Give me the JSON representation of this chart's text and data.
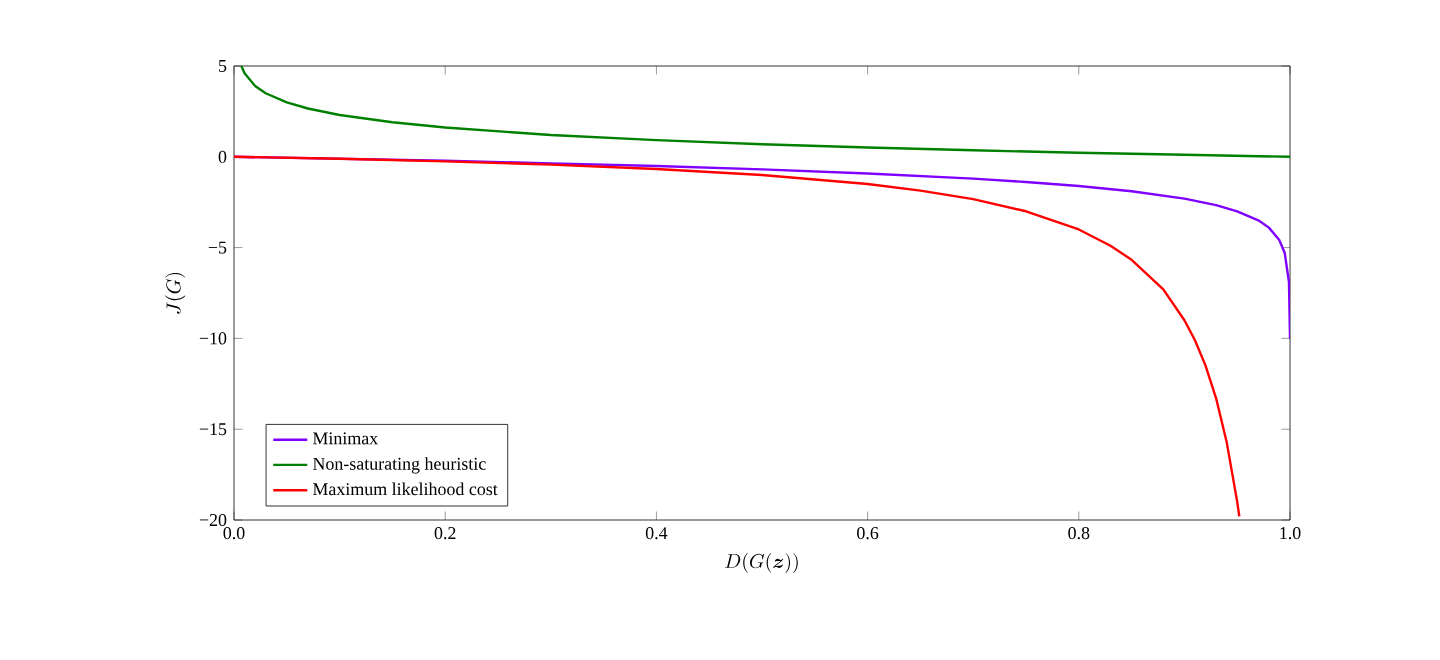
{
  "chart_data": {
    "type": "line",
    "xlabel": "D(G(\\boldsymbol{z}))",
    "ylabel": "J(G)",
    "xlim": [
      0,
      1
    ],
    "ylim": [
      -20,
      5
    ],
    "xticks": [
      {
        "value": 0,
        "label": "0.0"
      },
      {
        "value": 0.2,
        "label": "0.2"
      },
      {
        "value": 0.4,
        "label": "0.4"
      },
      {
        "value": 0.6,
        "label": "0.6"
      },
      {
        "value": 0.8,
        "label": "0.8"
      },
      {
        "value": 1,
        "label": "1.0"
      }
    ],
    "yticks": [
      {
        "value": -20,
        "label": "−20"
      },
      {
        "value": -15,
        "label": "−15"
      },
      {
        "value": -10,
        "label": "−10"
      },
      {
        "value": -5,
        "label": "−5"
      },
      0,
      5
    ],
    "legend": "bottom left",
    "grid": false,
    "marker": "none",
    "line_style": "solid",
    "series": [
      {
        "name": "Minimax",
        "color": "#8000ff",
        "x": [
          0,
          0.1,
          0.2,
          0.3,
          0.4,
          0.5,
          0.6,
          0.7,
          0.75,
          0.8,
          0.85,
          0.9,
          0.93,
          0.95,
          0.97,
          0.98,
          0.99,
          0.995,
          0.999,
          1.0
        ],
        "values": [
          0,
          -0.11,
          -0.22,
          -0.36,
          -0.51,
          -0.69,
          -0.92,
          -1.2,
          -1.39,
          -1.61,
          -1.9,
          -2.3,
          -2.66,
          -3.0,
          -3.5,
          -3.9,
          -4.6,
          -5.3,
          -6.9,
          -10
        ]
      },
      {
        "name": "Non-saturating heuristic",
        "color": "#008000",
        "x": [
          0.007,
          0.01,
          0.02,
          0.03,
          0.05,
          0.07,
          0.1,
          0.15,
          0.2,
          0.3,
          0.4,
          0.5,
          0.6,
          0.7,
          0.8,
          0.9,
          1.0
        ],
        "values": [
          5.0,
          4.6,
          3.9,
          3.5,
          3.0,
          2.66,
          2.3,
          1.9,
          1.61,
          1.2,
          0.92,
          0.69,
          0.51,
          0.36,
          0.22,
          0.11,
          0
        ]
      },
      {
        "name": "Maximum likelihood cost",
        "color": "#ff0000",
        "x": [
          0,
          0.1,
          0.2,
          0.3,
          0.4,
          0.5,
          0.6,
          0.65,
          0.7,
          0.75,
          0.8,
          0.83,
          0.85,
          0.88,
          0.9,
          0.91,
          0.92,
          0.93,
          0.94,
          0.95,
          0.952
        ],
        "values": [
          0,
          -0.11,
          -0.25,
          -0.43,
          -0.67,
          -1.0,
          -1.5,
          -1.86,
          -2.33,
          -3.0,
          -4.0,
          -4.9,
          -5.67,
          -7.3,
          -9.0,
          -10.1,
          -11.5,
          -13.3,
          -15.7,
          -19.0,
          -19.8
        ]
      }
    ]
  }
}
